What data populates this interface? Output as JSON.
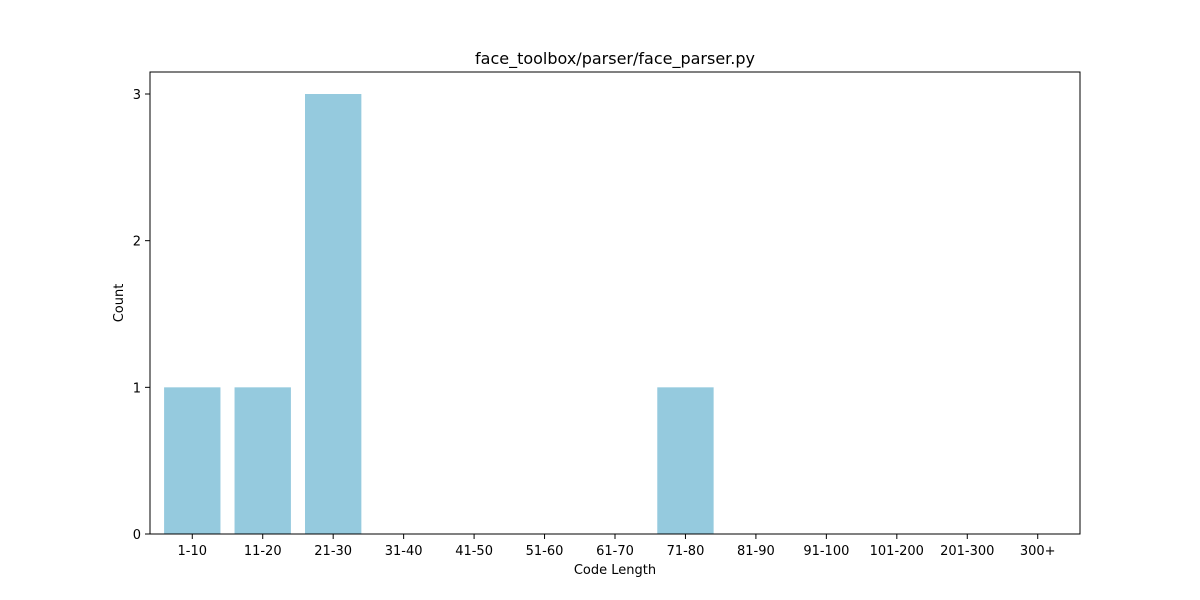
{
  "chart_data": {
    "type": "bar",
    "title": "face_toolbox/parser/face_parser.py",
    "xlabel": "Code Length",
    "ylabel": "Count",
    "categories": [
      "1-10",
      "11-20",
      "21-30",
      "31-40",
      "41-50",
      "51-60",
      "61-70",
      "71-80",
      "81-90",
      "91-100",
      "101-200",
      "201-300",
      "300+"
    ],
    "values": [
      1,
      1,
      3,
      0,
      0,
      0,
      0,
      1,
      0,
      0,
      0,
      0,
      0
    ],
    "ylim": [
      0,
      3.15
    ],
    "yticks": [
      0,
      1,
      2,
      3
    ],
    "bar_color": "#95cade",
    "grid": false,
    "legend": "none"
  }
}
